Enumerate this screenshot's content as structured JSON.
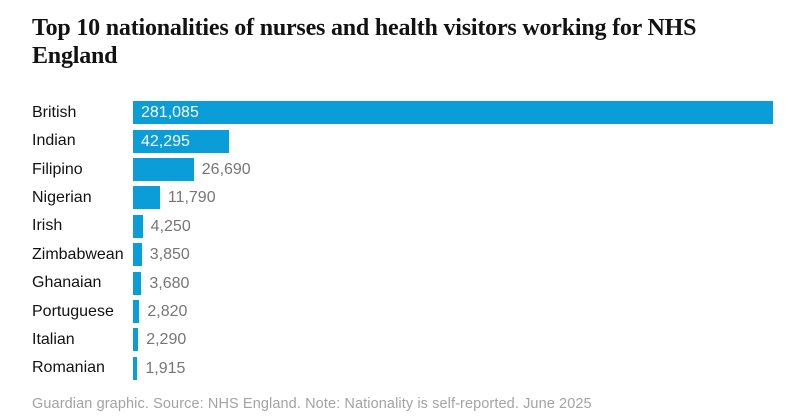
{
  "header": {
    "title": "Top 10 nationalities of nurses and health visitors working for NHS England",
    "title_lines": [
      "Top 10 nationalities of nurses and health visitors working for NHS",
      "England"
    ]
  },
  "chart_data": {
    "type": "bar",
    "orientation": "horizontal",
    "title": "Top 10 nationalities of nurses and health visitors working for NHS England",
    "categories": [
      "British",
      "Indian",
      "Filipino",
      "Nigerian",
      "Irish",
      "Zimbabwean",
      "Ghanaian",
      "Portuguese",
      "Italian",
      "Romanian"
    ],
    "values": [
      281085,
      42295,
      26690,
      11790,
      4250,
      3850,
      3680,
      2820,
      2290,
      1915
    ],
    "value_labels": [
      "281,085",
      "42,295",
      "26,690",
      "11,790",
      "4,250",
      "3,850",
      "3,680",
      "2,820",
      "2,290",
      "1,915"
    ],
    "xlabel": "",
    "ylabel": "",
    "xlim": [
      0,
      281085
    ],
    "grid": false,
    "legend": false,
    "value_label_inside_count": 2,
    "bar_color": "#0b9dd8"
  },
  "footer": {
    "note": "Guardian graphic. Source: NHS England. Note: Nationality is self-reported. June 2025"
  },
  "colors": {
    "bar_blue": "#0b9dd8",
    "title_text": "#121212",
    "category_text": "#121212",
    "value_inside_text": "#ffffff",
    "value_outside_text": "#767676",
    "footer_text": "#a3a3a3",
    "background": "#ffffff"
  }
}
